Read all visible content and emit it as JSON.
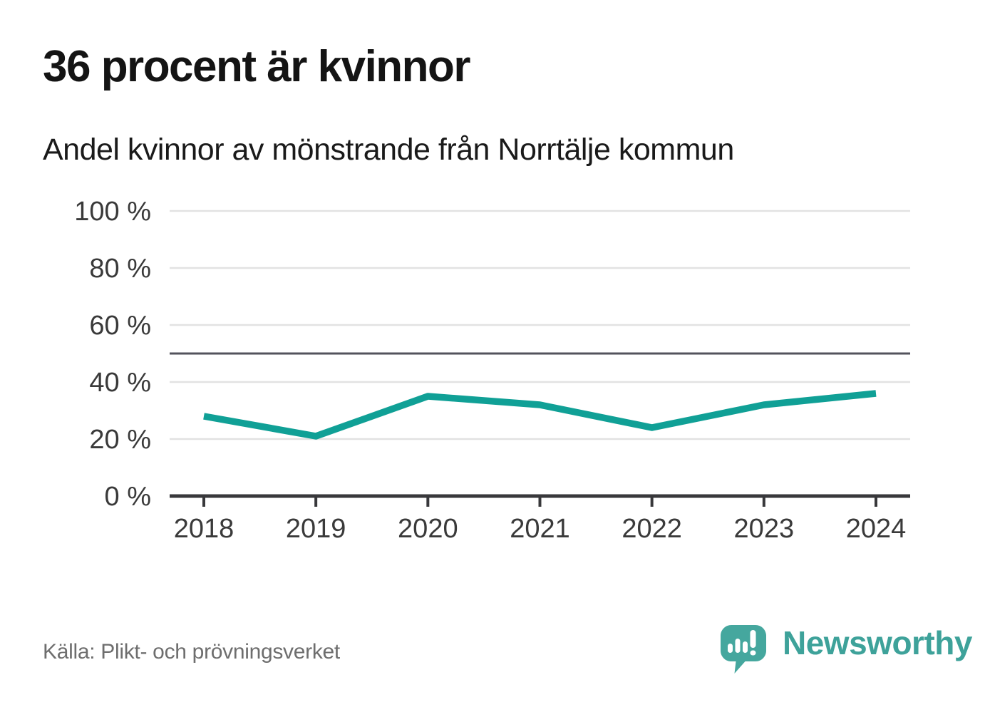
{
  "chart_data": {
    "type": "line",
    "title": "36 procent är kvinnor",
    "subtitle": "Andel kvinnor av mönstrande från Norrtälje kommun",
    "x": [
      "2018",
      "2019",
      "2020",
      "2021",
      "2022",
      "2023",
      "2024"
    ],
    "series": [
      {
        "name": "Andel kvinnor",
        "color": "#10a096",
        "values": [
          28,
          21,
          35,
          32,
          24,
          32,
          36
        ]
      }
    ],
    "unit": "%",
    "ylim": [
      0,
      100
    ],
    "yticks": [
      0,
      20,
      40,
      60,
      80,
      100
    ],
    "ytick_suffix": " %",
    "reference_line": {
      "value": 50,
      "color": "#53535c"
    },
    "grid": true,
    "legend": "none",
    "colors": {
      "grid": "#e2e2e2",
      "axis": "#38383b",
      "tick_label": "#3a3a3a"
    }
  },
  "footer": {
    "source": "Källa: Plikt- och prövningsverket",
    "brand_name": "Newsworthy",
    "brand_color": "#3ea29a",
    "brand_mark_color": "#45a79e"
  }
}
